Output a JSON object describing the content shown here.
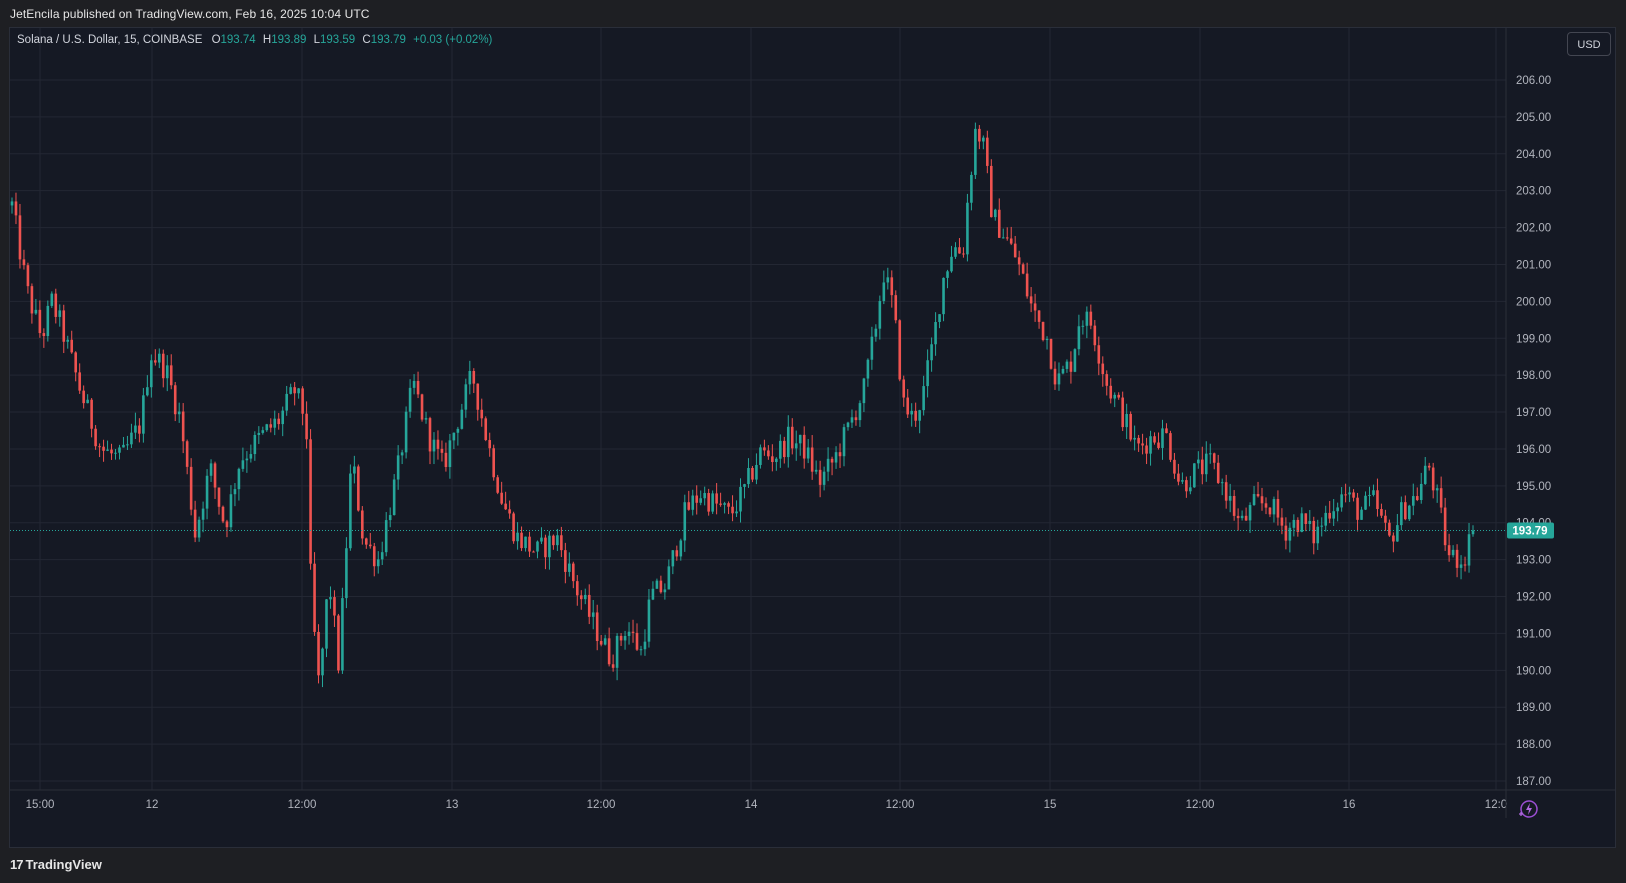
{
  "header": {
    "publisher_line": "JetEncila published on TradingView.com, Feb 16, 2025 10:04 UTC"
  },
  "legend": {
    "symbol": "Solana / U.S. Dollar, 15, COINBASE",
    "o_label": "O",
    "o_value": "193.74",
    "h_label": "H",
    "h_value": "193.89",
    "l_label": "L",
    "l_value": "193.59",
    "c_label": "C",
    "c_value": "193.79",
    "change": "+0.03 (+0.02%)"
  },
  "currency_button": "USD",
  "footer": {
    "brand": "TradingView",
    "brand_mark": "17"
  },
  "icons": {
    "bolt": "lightning-bolt-icon"
  },
  "colors": {
    "up": "#26a69a",
    "down": "#ef5350",
    "background": "#151924",
    "grid": "#232733",
    "price_label_bg": "#26a69a"
  },
  "chart_data": {
    "type": "candlestick",
    "symbol": "SOLUSD",
    "interval": "15",
    "ylim": [
      186.5,
      207
    ],
    "y_ticks": [
      "206.00",
      "205.00",
      "204.00",
      "203.00",
      "202.00",
      "201.00",
      "200.00",
      "199.00",
      "198.00",
      "197.00",
      "196.00",
      "195.00",
      "194.00",
      "193.00",
      "192.00",
      "191.00",
      "190.00",
      "189.00",
      "188.00",
      "187.00"
    ],
    "x_ticks": [
      "15:00",
      "12",
      "12:00",
      "13",
      "12:00",
      "14",
      "12:00",
      "15",
      "12:00",
      "16",
      "12:0"
    ],
    "last_price": 193.79,
    "last_price_label": "193.79",
    "grid": true,
    "price_anchors": [
      {
        "t": 0,
        "v": 202.6
      },
      {
        "t": 1.5,
        "v": 200.3
      },
      {
        "t": 3,
        "v": 199.0
      },
      {
        "t": 4,
        "v": 200.0
      },
      {
        "t": 5,
        "v": 199.3
      },
      {
        "t": 7,
        "v": 197.5
      },
      {
        "t": 9,
        "v": 196.0
      },
      {
        "t": 11,
        "v": 195.7
      },
      {
        "t": 13,
        "v": 196.7
      },
      {
        "t": 14,
        "v": 198.6
      },
      {
        "t": 15.5,
        "v": 198.2
      },
      {
        "t": 17,
        "v": 196.8
      },
      {
        "t": 18.5,
        "v": 193.7
      },
      {
        "t": 20,
        "v": 195.5
      },
      {
        "t": 21.5,
        "v": 193.9
      },
      {
        "t": 23,
        "v": 195.7
      },
      {
        "t": 25,
        "v": 196.3
      },
      {
        "t": 27,
        "v": 196.8
      },
      {
        "t": 28.5,
        "v": 197.6
      },
      {
        "t": 29.7,
        "v": 196.8
      },
      {
        "t": 30.2,
        "v": 192.0
      },
      {
        "t": 31,
        "v": 189.5
      },
      {
        "t": 32,
        "v": 192.5
      },
      {
        "t": 33,
        "v": 190.1
      },
      {
        "t": 34.3,
        "v": 195.8
      },
      {
        "t": 35.5,
        "v": 193.5
      },
      {
        "t": 37,
        "v": 193.0
      },
      {
        "t": 39,
        "v": 195.5
      },
      {
        "t": 40.5,
        "v": 197.8
      },
      {
        "t": 42,
        "v": 196.4
      },
      {
        "t": 43.5,
        "v": 195.5
      },
      {
        "t": 45,
        "v": 196.8
      },
      {
        "t": 46.5,
        "v": 198.0
      },
      {
        "t": 48,
        "v": 196.2
      },
      {
        "t": 49.5,
        "v": 194.6
      },
      {
        "t": 51,
        "v": 193.6
      },
      {
        "t": 53,
        "v": 193.2
      },
      {
        "t": 55,
        "v": 193.6
      },
      {
        "t": 57,
        "v": 192.2
      },
      {
        "t": 59,
        "v": 191.1
      },
      {
        "t": 60.5,
        "v": 190.3
      },
      {
        "t": 62,
        "v": 191.2
      },
      {
        "t": 63.5,
        "v": 190.5
      },
      {
        "t": 64.5,
        "v": 192.0
      },
      {
        "t": 66,
        "v": 192.3
      },
      {
        "t": 68,
        "v": 194.3
      },
      {
        "t": 69.5,
        "v": 194.8
      },
      {
        "t": 71,
        "v": 194.5
      },
      {
        "t": 72.5,
        "v": 194.2
      },
      {
        "t": 74,
        "v": 194.9
      },
      {
        "t": 75.5,
        "v": 195.9
      },
      {
        "t": 77,
        "v": 195.8
      },
      {
        "t": 78.5,
        "v": 196.3
      },
      {
        "t": 80,
        "v": 196.0
      },
      {
        "t": 81.5,
        "v": 195.1
      },
      {
        "t": 83,
        "v": 195.7
      },
      {
        "t": 84.5,
        "v": 196.6
      },
      {
        "t": 86,
        "v": 197.6
      },
      {
        "t": 87,
        "v": 199.0
      },
      {
        "t": 88,
        "v": 200.8
      },
      {
        "t": 89,
        "v": 199.8
      },
      {
        "t": 90,
        "v": 197.2
      },
      {
        "t": 91,
        "v": 196.8
      },
      {
        "t": 92,
        "v": 197.5
      },
      {
        "t": 93,
        "v": 198.9
      },
      {
        "t": 94,
        "v": 200.6
      },
      {
        "t": 95,
        "v": 201.5
      },
      {
        "t": 96,
        "v": 201.3
      },
      {
        "t": 96.5,
        "v": 202.8
      },
      {
        "t": 97.3,
        "v": 204.7
      },
      {
        "t": 98,
        "v": 204.3
      },
      {
        "t": 99,
        "v": 202.3
      },
      {
        "t": 100,
        "v": 201.9
      },
      {
        "t": 101.5,
        "v": 201.1
      },
      {
        "t": 103,
        "v": 199.8
      },
      {
        "t": 104.5,
        "v": 199.0
      },
      {
        "t": 105.5,
        "v": 197.8
      },
      {
        "t": 107,
        "v": 198.4
      },
      {
        "t": 107.8,
        "v": 199.6
      },
      {
        "t": 109,
        "v": 199.4
      },
      {
        "t": 110.5,
        "v": 197.8
      },
      {
        "t": 112,
        "v": 197.0
      },
      {
        "t": 113.5,
        "v": 196.0
      },
      {
        "t": 115,
        "v": 196.3
      },
      {
        "t": 116.5,
        "v": 196.4
      },
      {
        "t": 118,
        "v": 195.0
      },
      {
        "t": 119.5,
        "v": 195.4
      },
      {
        "t": 121,
        "v": 195.6
      },
      {
        "t": 122.5,
        "v": 194.9
      },
      {
        "t": 124,
        "v": 193.9
      },
      {
        "t": 125.5,
        "v": 194.5
      },
      {
        "t": 127,
        "v": 194.5
      },
      {
        "t": 128.5,
        "v": 193.8
      },
      {
        "t": 130,
        "v": 194.1
      },
      {
        "t": 131.5,
        "v": 193.6
      },
      {
        "t": 133,
        "v": 194.4
      },
      {
        "t": 134.5,
        "v": 194.8
      },
      {
        "t": 136,
        "v": 194.3
      },
      {
        "t": 137.5,
        "v": 194.6
      },
      {
        "t": 139,
        "v": 193.5
      },
      {
        "t": 140.5,
        "v": 194.4
      },
      {
        "t": 142,
        "v": 194.8
      },
      {
        "t": 143,
        "v": 195.6
      },
      {
        "t": 144,
        "v": 194.5
      },
      {
        "t": 145,
        "v": 193.1
      },
      {
        "t": 146.5,
        "v": 193.0
      },
      {
        "t": 147.5,
        "v": 193.79
      }
    ]
  }
}
